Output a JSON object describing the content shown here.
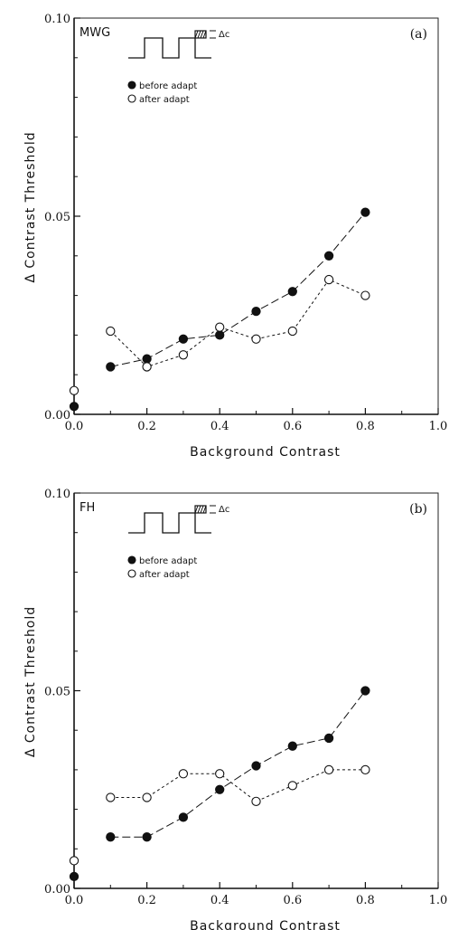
{
  "chart_data": [
    {
      "type": "line",
      "panel_label": "(a)",
      "subject": "MWG",
      "ylabel": "Δ Contrast Threshold",
      "xlabel": "Background Contrast",
      "xlim": [
        0,
        1.0
      ],
      "ylim": [
        0,
        0.1
      ],
      "x_ticks": [
        "0.0",
        "0.2",
        "0.4",
        "0.6",
        "0.8",
        "1.0"
      ],
      "y_ticks": [
        "0.00",
        "0.05",
        "0.10"
      ],
      "inset_label": "Δc",
      "legend_position": "top-left",
      "series": [
        {
          "name": "before adapt",
          "marker": "filled-circle",
          "line": "long-dash",
          "x": [
            0.0,
            0.1,
            0.2,
            0.3,
            0.4,
            0.5,
            0.6,
            0.7,
            0.8
          ],
          "y": [
            0.002,
            0.012,
            0.014,
            0.019,
            0.02,
            0.026,
            0.031,
            0.04,
            0.051
          ]
        },
        {
          "name": "after adapt",
          "marker": "open-circle",
          "line": "short-dash",
          "x": [
            0.0,
            0.1,
            0.2,
            0.3,
            0.4,
            0.5,
            0.6,
            0.7,
            0.8
          ],
          "y": [
            0.006,
            0.021,
            0.012,
            0.015,
            0.022,
            0.019,
            0.021,
            0.034,
            0.03
          ]
        }
      ]
    },
    {
      "type": "line",
      "panel_label": "(b)",
      "subject": "FH",
      "ylabel": "Δ Contrast Threshold",
      "xlabel": "Background Contrast",
      "xlim": [
        0,
        1.0
      ],
      "ylim": [
        0,
        0.1
      ],
      "x_ticks": [
        "0.0",
        "0.2",
        "0.4",
        "0.6",
        "0.8",
        "1.0"
      ],
      "y_ticks": [
        "0.00",
        "0.05",
        "0.10"
      ],
      "inset_label": "Δc",
      "legend_position": "top-left",
      "series": [
        {
          "name": "before adapt",
          "marker": "filled-circle",
          "line": "long-dash",
          "x": [
            0.0,
            0.1,
            0.2,
            0.3,
            0.4,
            0.5,
            0.6,
            0.7,
            0.8
          ],
          "y": [
            0.003,
            0.013,
            0.013,
            0.018,
            0.025,
            0.031,
            0.036,
            0.038,
            0.05
          ]
        },
        {
          "name": "after adapt",
          "marker": "open-circle",
          "line": "short-dash",
          "x": [
            0.0,
            0.1,
            0.2,
            0.3,
            0.4,
            0.5,
            0.6,
            0.7,
            0.8
          ],
          "y": [
            0.007,
            0.023,
            0.023,
            0.029,
            0.029,
            0.022,
            0.026,
            0.03,
            0.03
          ]
        }
      ]
    }
  ]
}
